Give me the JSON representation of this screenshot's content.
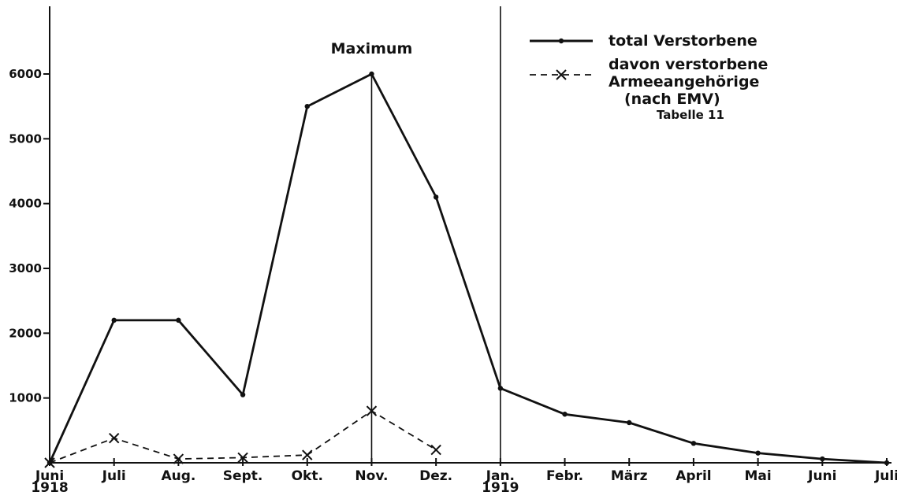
{
  "chart_data": {
    "type": "line",
    "categories": [
      "Juni 1918",
      "Juli",
      "Aug.",
      "Sept.",
      "Okt.",
      "Nov.",
      "Dez.",
      "Jan. 1919",
      "Febr.",
      "März",
      "April",
      "Mai",
      "Juni",
      "Juli"
    ],
    "x_tick_labels": [
      [
        "Juni",
        "1918"
      ],
      [
        "Juli"
      ],
      [
        "Aug."
      ],
      [
        "Sept."
      ],
      [
        "Okt."
      ],
      [
        "Nov."
      ],
      [
        "Dez."
      ],
      [
        "Jan.",
        "1919"
      ],
      [
        "Febr."
      ],
      [
        "März"
      ],
      [
        "April"
      ],
      [
        "Mai"
      ],
      [
        "Juni"
      ],
      [
        "Juli"
      ]
    ],
    "y_ticks": [
      1000,
      2000,
      3000,
      4000,
      5000,
      6000
    ],
    "y_tick_labels": [
      "1000",
      "2000",
      "3000",
      "4000",
      "5000",
      "6000"
    ],
    "ylim": [
      0,
      7000
    ],
    "series": [
      {
        "name": "total Verstorbene",
        "style": "solid-dot",
        "color": "#111111",
        "values": [
          0,
          2200,
          2200,
          1050,
          5500,
          6000,
          4100,
          1150,
          750,
          620,
          300,
          150,
          60,
          0
        ]
      },
      {
        "name": "davon verstorbene Armeeangehörige (nach EMV) Tabelle 11",
        "style": "dashed-x",
        "color": "#111111",
        "values": [
          0,
          380,
          60,
          80,
          120,
          800,
          200,
          null,
          null,
          null,
          null,
          null,
          null,
          null
        ]
      }
    ],
    "annotations": {
      "maximum_label": "Maximum",
      "maximum_index": 5,
      "vertical_line_indices": [
        5,
        7
      ]
    },
    "legend": {
      "placement": "top-right",
      "entries": [
        {
          "lines": [
            "total Verstorbene"
          ]
        },
        {
          "lines": [
            "davon verstorbene",
            "Armeeangehörige",
            "(nach EMV)",
            "Tabelle 11"
          ]
        }
      ]
    },
    "title": "",
    "xlabel": "",
    "ylabel": "",
    "grid": false
  }
}
